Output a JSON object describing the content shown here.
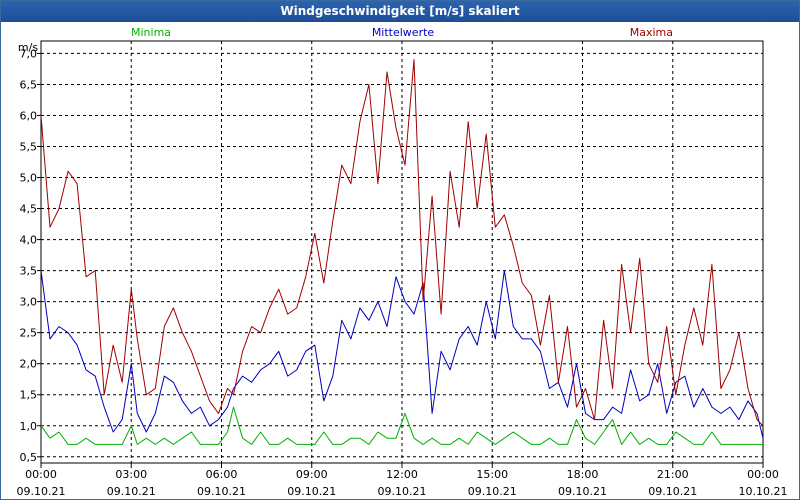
{
  "window": {
    "title": "Windgeschwindigkeit [m/s] skaliert"
  },
  "chart_data": {
    "type": "line",
    "title": "Windgeschwindigkeit [m/s] skaliert",
    "ylabel": "m/s",
    "ylim": [
      0.4,
      7.2
    ],
    "yticks": [
      "7,0",
      "6,5",
      "6,0",
      "5,5",
      "5,0",
      "4,5",
      "4,0",
      "3,5",
      "3,0",
      "2,5",
      "2,0",
      "1,5",
      "1,0",
      "0,5"
    ],
    "ytick_values": [
      7.0,
      6.5,
      6.0,
      5.5,
      5.0,
      4.5,
      4.0,
      3.5,
      3.0,
      2.5,
      2.0,
      1.5,
      1.0,
      0.5
    ],
    "xlim": [
      0,
      24
    ],
    "xticks": [
      {
        "time": "00:00",
        "date": "09.10.21"
      },
      {
        "time": "03:00",
        "date": "09.10.21"
      },
      {
        "time": "06:00",
        "date": "09.10.21"
      },
      {
        "time": "09:00",
        "date": "09.10.21"
      },
      {
        "time": "12:00",
        "date": "09.10.21"
      },
      {
        "time": "15:00",
        "date": "09.10.21"
      },
      {
        "time": "18:00",
        "date": "09.10.21"
      },
      {
        "time": "21:00",
        "date": "09.10.21"
      },
      {
        "time": "00:00",
        "date": "10.10.21"
      }
    ],
    "xtick_hours": [
      0,
      3,
      6,
      9,
      12,
      15,
      18,
      21,
      24
    ],
    "grid": true,
    "legend_placement": "top",
    "series": [
      {
        "name": "Minima",
        "color": "#00b000",
        "label_align": "left",
        "x": [
          0,
          0.3,
          0.6,
          0.9,
          1.2,
          1.5,
          1.8,
          2.1,
          2.4,
          2.7,
          3.0,
          3.2,
          3.5,
          3.8,
          4.1,
          4.4,
          4.7,
          5.0,
          5.3,
          5.6,
          5.9,
          6.2,
          6.4,
          6.7,
          7.0,
          7.3,
          7.6,
          7.9,
          8.2,
          8.5,
          8.8,
          9.1,
          9.4,
          9.7,
          10.0,
          10.3,
          10.6,
          10.9,
          11.2,
          11.5,
          11.8,
          12.1,
          12.4,
          12.7,
          13.0,
          13.3,
          13.6,
          13.9,
          14.2,
          14.5,
          14.8,
          15.1,
          15.4,
          15.7,
          16.0,
          16.3,
          16.6,
          16.9,
          17.2,
          17.5,
          17.8,
          18.1,
          18.4,
          18.7,
          19.0,
          19.3,
          19.6,
          19.9,
          20.2,
          20.5,
          20.8,
          21.1,
          21.4,
          21.7,
          22.0,
          22.3,
          22.6,
          22.9,
          23.2,
          23.5,
          23.8,
          24.0
        ],
        "values": [
          1.0,
          0.8,
          0.9,
          0.7,
          0.7,
          0.8,
          0.7,
          0.7,
          0.7,
          0.7,
          1.0,
          0.7,
          0.8,
          0.7,
          0.8,
          0.7,
          0.8,
          0.9,
          0.7,
          0.7,
          0.7,
          0.9,
          1.3,
          0.8,
          0.7,
          0.9,
          0.7,
          0.7,
          0.8,
          0.7,
          0.7,
          0.7,
          0.9,
          0.7,
          0.7,
          0.8,
          0.8,
          0.7,
          0.9,
          0.8,
          0.8,
          1.2,
          0.8,
          0.7,
          0.8,
          0.7,
          0.7,
          0.8,
          0.7,
          0.9,
          0.8,
          0.7,
          0.8,
          0.9,
          0.8,
          0.7,
          0.7,
          0.8,
          0.7,
          0.7,
          1.1,
          0.8,
          0.7,
          0.9,
          1.1,
          0.7,
          0.9,
          0.7,
          0.8,
          0.7,
          0.7,
          0.9,
          0.8,
          0.7,
          0.7,
          0.9,
          0.7,
          0.7,
          0.7,
          0.7,
          0.7,
          0.7
        ]
      },
      {
        "name": "Mittelwerte",
        "color": "#0000c0",
        "label_align": "center",
        "x": [
          0,
          0.3,
          0.6,
          0.9,
          1.2,
          1.5,
          1.8,
          2.1,
          2.4,
          2.7,
          3.0,
          3.2,
          3.5,
          3.8,
          4.1,
          4.4,
          4.7,
          5.0,
          5.3,
          5.6,
          5.9,
          6.2,
          6.4,
          6.7,
          7.0,
          7.3,
          7.6,
          7.9,
          8.2,
          8.5,
          8.8,
          9.1,
          9.4,
          9.7,
          10.0,
          10.3,
          10.6,
          10.9,
          11.2,
          11.5,
          11.8,
          12.1,
          12.4,
          12.7,
          13.0,
          13.3,
          13.6,
          13.9,
          14.2,
          14.5,
          14.8,
          15.1,
          15.4,
          15.7,
          16.0,
          16.3,
          16.6,
          16.9,
          17.2,
          17.5,
          17.8,
          18.1,
          18.4,
          18.7,
          19.0,
          19.3,
          19.6,
          19.9,
          20.2,
          20.5,
          20.8,
          21.1,
          21.4,
          21.7,
          22.0,
          22.3,
          22.6,
          22.9,
          23.2,
          23.5,
          23.8,
          24.0
        ],
        "values": [
          3.5,
          2.4,
          2.6,
          2.5,
          2.3,
          1.9,
          1.8,
          1.3,
          0.9,
          1.1,
          2.0,
          1.2,
          0.9,
          1.2,
          1.8,
          1.7,
          1.4,
          1.2,
          1.3,
          1.0,
          1.1,
          1.3,
          1.6,
          1.8,
          1.7,
          1.9,
          2.0,
          2.2,
          1.8,
          1.9,
          2.2,
          2.3,
          1.4,
          1.8,
          2.7,
          2.4,
          2.9,
          2.7,
          3.0,
          2.6,
          3.4,
          3.0,
          2.8,
          3.3,
          1.2,
          2.2,
          1.9,
          2.4,
          2.6,
          2.3,
          3.0,
          2.4,
          3.5,
          2.6,
          2.4,
          2.4,
          2.2,
          1.6,
          1.7,
          1.3,
          2.0,
          1.2,
          1.1,
          1.1,
          1.3,
          1.2,
          1.9,
          1.4,
          1.5,
          2.0,
          1.2,
          1.7,
          1.8,
          1.3,
          1.6,
          1.3,
          1.2,
          1.3,
          1.1,
          1.4,
          1.2,
          0.8
        ]
      },
      {
        "name": "Maxima",
        "color": "#a00000",
        "label_align": "right",
        "x": [
          0,
          0.3,
          0.6,
          0.9,
          1.2,
          1.5,
          1.8,
          2.1,
          2.4,
          2.7,
          3.0,
          3.2,
          3.5,
          3.8,
          4.1,
          4.4,
          4.7,
          5.0,
          5.3,
          5.6,
          5.9,
          6.2,
          6.4,
          6.7,
          7.0,
          7.3,
          7.6,
          7.9,
          8.2,
          8.5,
          8.8,
          9.1,
          9.4,
          9.7,
          10.0,
          10.3,
          10.6,
          10.9,
          11.2,
          11.5,
          11.8,
          12.1,
          12.4,
          12.7,
          13.0,
          13.3,
          13.6,
          13.9,
          14.2,
          14.5,
          14.8,
          15.1,
          15.4,
          15.7,
          16.0,
          16.3,
          16.6,
          16.9,
          17.2,
          17.5,
          17.8,
          18.1,
          18.4,
          18.7,
          19.0,
          19.3,
          19.6,
          19.9,
          20.2,
          20.5,
          20.8,
          21.1,
          21.4,
          21.7,
          22.0,
          22.3,
          22.6,
          22.9,
          23.2,
          23.5,
          23.8,
          24.0
        ],
        "values": [
          6.0,
          4.2,
          4.5,
          5.1,
          4.9,
          3.4,
          3.5,
          1.5,
          2.3,
          1.7,
          3.2,
          2.4,
          1.5,
          1.6,
          2.6,
          2.9,
          2.5,
          2.2,
          1.8,
          1.4,
          1.2,
          1.6,
          1.5,
          2.2,
          2.6,
          2.5,
          2.9,
          3.2,
          2.8,
          2.9,
          3.4,
          4.1,
          3.3,
          4.3,
          5.2,
          4.9,
          5.9,
          6.5,
          4.9,
          6.7,
          5.8,
          5.2,
          6.9,
          3.0,
          4.7,
          2.8,
          5.1,
          4.2,
          5.9,
          4.5,
          5.7,
          4.2,
          4.4,
          3.9,
          3.3,
          3.1,
          2.3,
          3.1,
          1.7,
          2.6,
          1.3,
          1.6,
          1.1,
          2.7,
          1.6,
          3.6,
          2.5,
          3.7,
          2.0,
          1.7,
          2.6,
          1.5,
          2.3,
          2.9,
          2.3,
          3.6,
          1.6,
          1.9,
          2.5,
          1.6,
          1.1,
          1.0
        ]
      }
    ]
  }
}
